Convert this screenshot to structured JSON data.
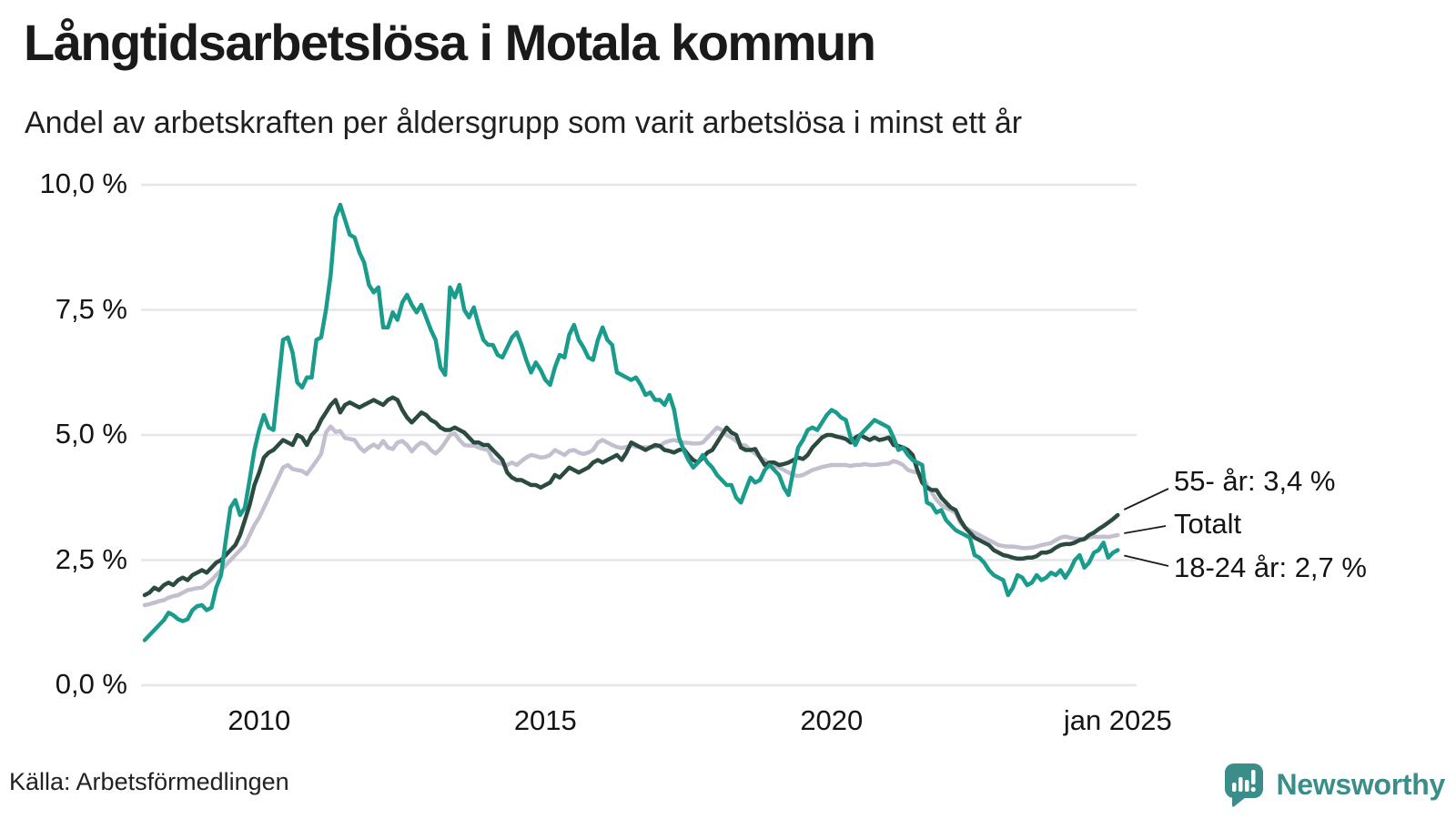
{
  "header": {
    "title": "Långtidsarbetslösa i Motala kommun",
    "subtitle": "Andel av arbetskraften per åldersgrupp som varit arbetslösa i minst ett år"
  },
  "footer": {
    "source": "Källa: Arbetsförmedlingen",
    "brand": "Newsworthy"
  },
  "colors": {
    "teal_line": "#1a9c8c",
    "dark_line": "#2b4a40",
    "gray_line": "#c2bfce",
    "gridline": "#e6e5ea",
    "leader": "#1a1a1a",
    "brand_teal": "#3a8d89"
  },
  "chart_data": {
    "type": "line",
    "title": "Långtidsarbetslösa i Motala kommun",
    "subtitle": "Andel av arbetskraften per åldersgrupp som varit arbetslösa i minst ett år",
    "unit": "%",
    "frequency": "monthly",
    "x_start_year": 2008.0,
    "x_end_year": 2025.0,
    "ylim": [
      0,
      10
    ],
    "grid": "horizontal",
    "legend_position": "end-of-line-labels",
    "y_ticks": [
      {
        "value": 0,
        "label": "0,0 %"
      },
      {
        "value": 2.5,
        "label": "2,5 %"
      },
      {
        "value": 5,
        "label": "5,0 %"
      },
      {
        "value": 7.5,
        "label": "7,5 %"
      },
      {
        "value": 10,
        "label": "10,0 %"
      }
    ],
    "x_ticks": [
      {
        "year": 2010,
        "label": "2010"
      },
      {
        "year": 2015,
        "label": "2015"
      },
      {
        "year": 2020,
        "label": "2020"
      },
      {
        "year": 2025,
        "label": "jan 2025"
      }
    ],
    "annotations": [
      {
        "label": "55- år: 3,4 %",
        "series": "55- år"
      },
      {
        "label": "Totalt",
        "series": "Totalt"
      },
      {
        "label": "18-24 år: 2,7 %",
        "series": "18-24 år"
      }
    ],
    "series": [
      {
        "name": "Totalt",
        "color": "#c2bfce",
        "last_value": 3.0,
        "values": [
          1.6,
          1.62,
          1.65,
          1.68,
          1.7,
          1.75,
          1.78,
          1.8,
          1.85,
          1.9,
          1.92,
          1.94,
          1.95,
          2.02,
          2.1,
          2.2,
          2.3,
          2.4,
          2.5,
          2.6,
          2.7,
          2.8,
          3.0,
          3.2,
          3.35,
          3.55,
          3.75,
          3.95,
          4.15,
          4.35,
          4.4,
          4.32,
          4.3,
          4.28,
          4.22,
          4.35,
          4.48,
          4.62,
          5.05,
          5.17,
          5.06,
          5.08,
          4.94,
          4.92,
          4.9,
          4.76,
          4.67,
          4.75,
          4.81,
          4.75,
          4.88,
          4.75,
          4.72,
          4.85,
          4.88,
          4.8,
          4.67,
          4.78,
          4.85,
          4.81,
          4.7,
          4.63,
          4.72,
          4.85,
          5.0,
          5.03,
          4.9,
          4.8,
          4.79,
          4.79,
          4.75,
          4.72,
          4.7,
          4.5,
          4.45,
          4.42,
          4.4,
          4.45,
          4.4,
          4.48,
          4.55,
          4.6,
          4.58,
          4.55,
          4.56,
          4.6,
          4.7,
          4.65,
          4.6,
          4.68,
          4.7,
          4.65,
          4.62,
          4.65,
          4.7,
          4.85,
          4.9,
          4.85,
          4.8,
          4.76,
          4.74,
          4.76,
          4.79,
          4.77,
          4.76,
          4.75,
          4.76,
          4.76,
          4.78,
          4.85,
          4.88,
          4.9,
          4.87,
          4.85,
          4.84,
          4.83,
          4.83,
          4.85,
          4.95,
          5.05,
          5.15,
          5.1,
          5.0,
          4.95,
          4.88,
          4.8,
          4.79,
          4.7,
          4.63,
          4.55,
          4.5,
          4.42,
          4.4,
          4.35,
          4.3,
          4.25,
          4.2,
          4.18,
          4.2,
          4.25,
          4.3,
          4.33,
          4.36,
          4.38,
          4.4,
          4.4,
          4.4,
          4.4,
          4.38,
          4.4,
          4.4,
          4.42,
          4.4,
          4.4,
          4.41,
          4.42,
          4.43,
          4.48,
          4.45,
          4.4,
          4.3,
          4.27,
          4.25,
          4.21,
          4.0,
          3.85,
          3.71,
          3.6,
          3.54,
          3.5,
          3.45,
          3.25,
          3.15,
          3.1,
          3.05,
          3.0,
          2.95,
          2.9,
          2.85,
          2.8,
          2.78,
          2.77,
          2.77,
          2.76,
          2.74,
          2.74,
          2.75,
          2.77,
          2.8,
          2.82,
          2.84,
          2.9,
          2.95,
          2.97,
          2.95,
          2.93,
          2.92,
          2.93,
          2.95,
          2.97,
          2.96,
          2.97,
          2.96,
          2.98,
          3.0
        ]
      },
      {
        "name": "55- år",
        "color": "#2b4a40",
        "last_value": 3.4,
        "values": [
          1.8,
          1.85,
          1.95,
          1.9,
          2.0,
          2.05,
          2.0,
          2.1,
          2.15,
          2.1,
          2.2,
          2.25,
          2.3,
          2.25,
          2.35,
          2.45,
          2.5,
          2.6,
          2.7,
          2.8,
          3.0,
          3.3,
          3.6,
          4.0,
          4.25,
          4.55,
          4.65,
          4.7,
          4.8,
          4.9,
          4.85,
          4.8,
          5.0,
          4.95,
          4.8,
          5.0,
          5.1,
          5.3,
          5.45,
          5.6,
          5.7,
          5.45,
          5.6,
          5.65,
          5.6,
          5.55,
          5.6,
          5.65,
          5.7,
          5.65,
          5.6,
          5.7,
          5.75,
          5.7,
          5.5,
          5.35,
          5.25,
          5.35,
          5.45,
          5.4,
          5.3,
          5.25,
          5.15,
          5.1,
          5.1,
          5.15,
          5.1,
          5.05,
          4.95,
          4.85,
          4.85,
          4.8,
          4.8,
          4.7,
          4.6,
          4.5,
          4.25,
          4.15,
          4.1,
          4.1,
          4.05,
          4.0,
          4.0,
          3.95,
          4.0,
          4.05,
          4.2,
          4.15,
          4.25,
          4.35,
          4.3,
          4.25,
          4.3,
          4.35,
          4.45,
          4.5,
          4.45,
          4.5,
          4.55,
          4.6,
          4.5,
          4.65,
          4.85,
          4.8,
          4.75,
          4.7,
          4.75,
          4.8,
          4.78,
          4.7,
          4.68,
          4.65,
          4.7,
          4.72,
          4.6,
          4.5,
          4.45,
          4.55,
          4.65,
          4.7,
          4.85,
          5.0,
          5.15,
          5.05,
          5.0,
          4.75,
          4.7,
          4.7,
          4.72,
          4.55,
          4.4,
          4.45,
          4.45,
          4.4,
          4.42,
          4.45,
          4.5,
          4.55,
          4.52,
          4.6,
          4.75,
          4.85,
          4.95,
          5.0,
          5.0,
          4.97,
          4.95,
          4.92,
          4.85,
          4.95,
          5.0,
          4.95,
          4.9,
          4.95,
          4.9,
          4.92,
          4.95,
          4.8,
          4.78,
          4.75,
          4.7,
          4.6,
          4.3,
          4.05,
          3.95,
          3.9,
          3.9,
          3.75,
          3.65,
          3.55,
          3.5,
          3.3,
          3.15,
          3.05,
          2.95,
          2.9,
          2.85,
          2.8,
          2.7,
          2.65,
          2.6,
          2.58,
          2.55,
          2.53,
          2.53,
          2.55,
          2.55,
          2.58,
          2.65,
          2.65,
          2.68,
          2.75,
          2.8,
          2.82,
          2.82,
          2.85,
          2.9,
          2.92,
          3.0,
          3.05,
          3.12,
          3.18,
          3.25,
          3.32,
          3.4
        ]
      },
      {
        "name": "18-24 år",
        "color": "#1a9c8c",
        "last_value": 2.7,
        "values": [
          0.9,
          1.0,
          1.1,
          1.2,
          1.3,
          1.45,
          1.4,
          1.32,
          1.28,
          1.32,
          1.5,
          1.58,
          1.6,
          1.5,
          1.55,
          1.95,
          2.2,
          2.9,
          3.55,
          3.7,
          3.4,
          3.55,
          4.1,
          4.7,
          5.1,
          5.4,
          5.15,
          5.1,
          6.0,
          6.9,
          6.95,
          6.65,
          6.05,
          5.95,
          6.15,
          6.15,
          6.9,
          6.95,
          7.5,
          8.2,
          9.35,
          9.6,
          9.3,
          9.0,
          8.95,
          8.65,
          8.45,
          8.0,
          7.85,
          7.95,
          7.15,
          7.15,
          7.45,
          7.3,
          7.65,
          7.8,
          7.6,
          7.45,
          7.6,
          7.35,
          7.1,
          6.9,
          6.35,
          6.2,
          7.95,
          7.75,
          8.0,
          7.5,
          7.35,
          7.55,
          7.2,
          6.9,
          6.8,
          6.8,
          6.6,
          6.55,
          6.75,
          6.95,
          7.05,
          6.8,
          6.5,
          6.25,
          6.45,
          6.3,
          6.1,
          6.0,
          6.35,
          6.6,
          6.55,
          7.0,
          7.2,
          6.9,
          6.75,
          6.55,
          6.5,
          6.9,
          7.15,
          6.9,
          6.8,
          6.25,
          6.2,
          6.15,
          6.1,
          6.15,
          6.0,
          5.8,
          5.85,
          5.7,
          5.7,
          5.6,
          5.8,
          5.5,
          4.95,
          4.7,
          4.5,
          4.35,
          4.45,
          4.6,
          4.45,
          4.35,
          4.2,
          4.1,
          4.0,
          4.0,
          3.75,
          3.65,
          3.9,
          4.15,
          4.05,
          4.1,
          4.3,
          4.4,
          4.3,
          4.2,
          3.95,
          3.8,
          4.3,
          4.75,
          4.9,
          5.1,
          5.15,
          5.1,
          5.25,
          5.4,
          5.5,
          5.45,
          5.35,
          5.3,
          4.95,
          4.8,
          5.0,
          5.1,
          5.2,
          5.3,
          5.25,
          5.2,
          5.15,
          4.95,
          4.7,
          4.75,
          4.6,
          4.5,
          4.45,
          4.4,
          3.65,
          3.6,
          3.45,
          3.5,
          3.3,
          3.2,
          3.1,
          3.05,
          3.0,
          2.95,
          2.6,
          2.55,
          2.45,
          2.3,
          2.2,
          2.15,
          2.1,
          1.8,
          1.95,
          2.2,
          2.15,
          2.0,
          2.05,
          2.2,
          2.1,
          2.15,
          2.25,
          2.2,
          2.3,
          2.15,
          2.3,
          2.5,
          2.6,
          2.35,
          2.45,
          2.65,
          2.7,
          2.85,
          2.55,
          2.65,
          2.7
        ]
      }
    ]
  }
}
